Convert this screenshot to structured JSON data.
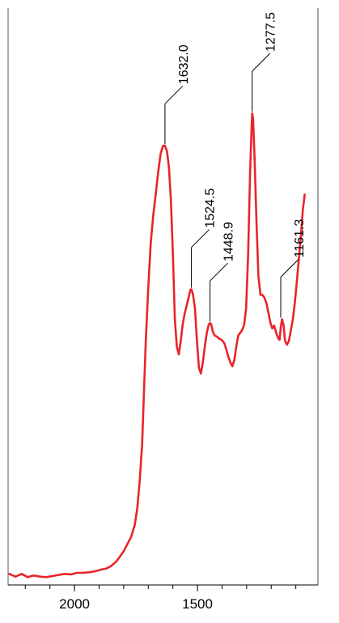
{
  "chart_data": {
    "type": "line",
    "title": "",
    "xlabel": "",
    "ylabel": "",
    "x_reversed": true,
    "xlim": [
      2270,
      1010
    ],
    "ylim": [
      0,
      1
    ],
    "x_ticks": [
      2000,
      1500
    ],
    "x_tick_labels": [
      "2000",
      "1500"
    ],
    "grid": false,
    "series": [
      {
        "color": "#e8252a",
        "x": [
          2265,
          2240,
          2215,
          2190,
          2165,
          2140,
          2115,
          2090,
          2065,
          2040,
          2015,
          1990,
          1965,
          1940,
          1915,
          1890,
          1870,
          1850,
          1830,
          1815,
          1800,
          1785,
          1770,
          1755,
          1745,
          1735,
          1725,
          1718,
          1710,
          1700,
          1690,
          1680,
          1670,
          1660,
          1650,
          1640,
          1632,
          1624,
          1616,
          1608,
          1600,
          1592,
          1584,
          1576,
          1568,
          1560,
          1552,
          1544,
          1536,
          1528,
          1524.5,
          1518,
          1510,
          1502,
          1494,
          1486,
          1478,
          1470,
          1462,
          1454,
          1448.9,
          1444,
          1438,
          1430,
          1422,
          1414,
          1406,
          1398,
          1390,
          1382,
          1374,
          1366,
          1358,
          1350,
          1342,
          1334,
          1326,
          1318,
          1310,
          1302,
          1294,
          1286,
          1280,
          1277.5,
          1274,
          1268,
          1260,
          1252,
          1244,
          1236,
          1228,
          1220,
          1212,
          1204,
          1196,
          1188,
          1180,
          1172,
          1166,
          1161.3,
          1156,
          1150,
          1144,
          1136,
          1128,
          1120,
          1112,
          1104,
          1096,
          1088,
          1080,
          1072,
          1064
        ],
        "y": [
          0.01,
          0.005,
          0.01,
          0.004,
          0.007,
          0.005,
          0.004,
          0.006,
          0.008,
          0.01,
          0.009,
          0.012,
          0.012,
          0.013,
          0.015,
          0.018,
          0.02,
          0.025,
          0.033,
          0.042,
          0.052,
          0.065,
          0.078,
          0.1,
          0.13,
          0.18,
          0.25,
          0.34,
          0.44,
          0.54,
          0.62,
          0.67,
          0.71,
          0.75,
          0.785,
          0.8,
          0.8,
          0.79,
          0.76,
          0.7,
          0.6,
          0.48,
          0.43,
          0.415,
          0.44,
          0.47,
          0.49,
          0.505,
          0.52,
          0.535,
          0.535,
          0.525,
          0.5,
          0.44,
          0.39,
          0.38,
          0.4,
          0.43,
          0.455,
          0.47,
          0.473,
          0.47,
          0.458,
          0.45,
          0.448,
          0.445,
          0.443,
          0.44,
          0.435,
          0.423,
          0.41,
          0.4,
          0.393,
          0.405,
          0.43,
          0.45,
          0.455,
          0.46,
          0.47,
          0.5,
          0.6,
          0.75,
          0.83,
          0.86,
          0.85,
          0.78,
          0.66,
          0.56,
          0.525,
          0.525,
          0.52,
          0.51,
          0.493,
          0.475,
          0.463,
          0.468,
          0.455,
          0.445,
          0.442,
          0.465,
          0.48,
          0.47,
          0.44,
          0.433,
          0.44,
          0.46,
          0.48,
          0.51,
          0.55,
          0.59,
          0.63,
          0.68,
          0.71
        ]
      }
    ],
    "annotations": [
      {
        "text": "1632.0",
        "x": 1632.0,
        "y": 0.8
      },
      {
        "text": "1524.5",
        "x": 1524.5,
        "y": 0.535
      },
      {
        "text": "1448.9",
        "x": 1448.9,
        "y": 0.473
      },
      {
        "text": "1277.5",
        "x": 1277.5,
        "y": 0.86
      },
      {
        "text": "1161.3",
        "x": 1161.3,
        "y": 0.48
      }
    ]
  }
}
